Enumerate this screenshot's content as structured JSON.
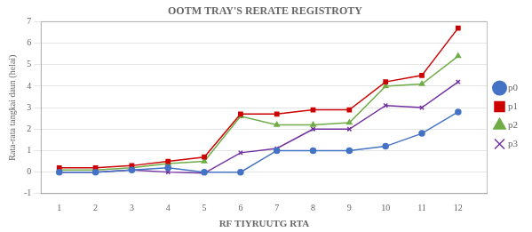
{
  "chart_data": {
    "type": "line",
    "title": "OOTM TRAY'S RERATE REGISTROTY",
    "xlabel": "RF TIYRUUTG RTA",
    "ylabel": "Rata-rata tangkai daun (helai)",
    "x": [
      1,
      2,
      3,
      4,
      5,
      6,
      7,
      8,
      9,
      10,
      11,
      12
    ],
    "series": [
      {
        "name": "p0",
        "color": "#4472c4",
        "marker": "circle",
        "values": [
          0.0,
          0.0,
          0.1,
          0.2,
          0.0,
          0.0,
          1.0,
          1.0,
          1.0,
          1.2,
          1.8,
          2.8
        ]
      },
      {
        "name": "p1",
        "color": "#cc0000",
        "marker": "square",
        "values": [
          0.2,
          0.2,
          0.3,
          0.5,
          0.7,
          2.7,
          2.7,
          2.9,
          2.9,
          4.2,
          4.5,
          6.7
        ]
      },
      {
        "name": "p2",
        "color": "#70ad47",
        "marker": "triangle",
        "values": [
          0.1,
          0.1,
          0.2,
          0.4,
          0.5,
          2.6,
          2.2,
          2.2,
          2.3,
          4.0,
          4.1,
          5.4
        ]
      },
      {
        "name": "p3",
        "color": "#7030a0",
        "marker": "x",
        "values": [
          0.0,
          0.0,
          0.1,
          0.0,
          -0.05,
          0.9,
          1.1,
          2.0,
          2.0,
          3.1,
          3.0,
          4.2
        ]
      }
    ],
    "xlim": [
      0.5,
      12.8
    ],
    "xticks": [
      1,
      2,
      3,
      4,
      5,
      6,
      7,
      8,
      9,
      10,
      11,
      12
    ],
    "ylim": [
      -1,
      7
    ],
    "yticks": [
      -1,
      0,
      1,
      2,
      3,
      4,
      5,
      6,
      7
    ],
    "grid": "y",
    "legend": "right"
  }
}
